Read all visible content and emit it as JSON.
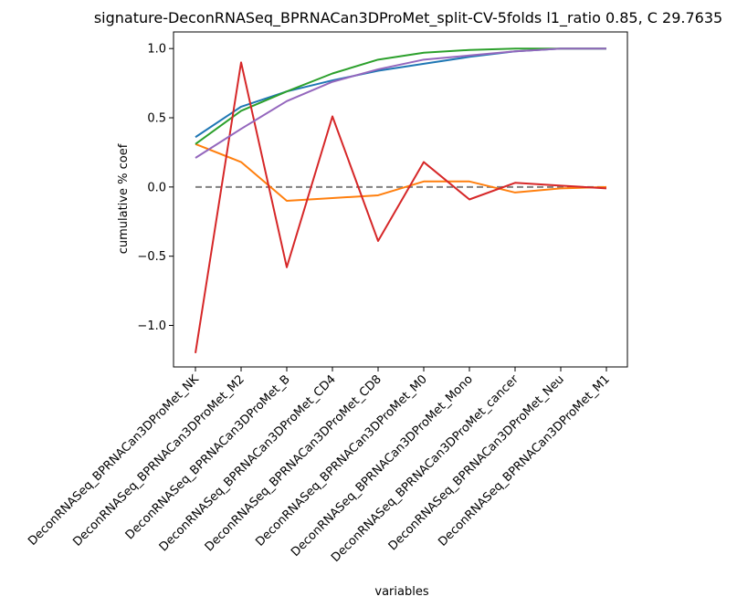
{
  "chart_data": {
    "type": "line",
    "title": "signature-DeconRNASeq_BPRNACan3DProMet_split-CV-5folds l1_ratio 0.85, C 29.7635",
    "xlabel": "variables",
    "ylabel": "cumulative % coef",
    "ylim": [
      -1.3,
      1.12
    ],
    "yticks": [
      -1.0,
      -0.5,
      0.0,
      0.5,
      1.0
    ],
    "ytick_labels": [
      "−1.0",
      "−0.5",
      "0.0",
      "0.5",
      "1.0"
    ],
    "grid": false,
    "categories": [
      "DeconRNASeq_BPRNACan3DProMet_NK",
      "DeconRNASeq_BPRNACan3DProMet_M2",
      "DeconRNASeq_BPRNACan3DProMet_B",
      "DeconRNASeq_BPRNACan3DProMet_CD4",
      "DeconRNASeq_BPRNACan3DProMet_CD8",
      "DeconRNASeq_BPRNACan3DProMet_M0",
      "DeconRNASeq_BPRNACan3DProMet_Mono",
      "DeconRNASeq_BPRNACan3DProMet_cancer",
      "DeconRNASeq_BPRNACan3DProMet_Neu",
      "DeconRNASeq_BPRNACan3DProMet_M1"
    ],
    "reference_line": {
      "y": 0.0,
      "style": "dashed",
      "color": "#808080"
    },
    "series": [
      {
        "color": "#1f77b4",
        "values": [
          0.36,
          0.58,
          0.69,
          0.77,
          0.84,
          0.89,
          0.94,
          0.98,
          1.0,
          1.0
        ]
      },
      {
        "color": "#ff7f0e",
        "values": [
          0.31,
          0.18,
          -0.1,
          -0.08,
          -0.06,
          0.04,
          0.04,
          -0.04,
          -0.01,
          0.0
        ]
      },
      {
        "color": "#2ca02c",
        "values": [
          0.31,
          0.55,
          0.69,
          0.82,
          0.92,
          0.97,
          0.99,
          1.0,
          1.0,
          1.0
        ]
      },
      {
        "color": "#d62728",
        "values": [
          -1.2,
          0.9,
          -0.58,
          0.51,
          -0.39,
          0.18,
          -0.09,
          0.03,
          0.01,
          -0.01
        ]
      },
      {
        "color": "#9467bd",
        "values": [
          0.21,
          0.42,
          0.62,
          0.76,
          0.85,
          0.92,
          0.95,
          0.98,
          1.0,
          1.0
        ]
      }
    ]
  }
}
